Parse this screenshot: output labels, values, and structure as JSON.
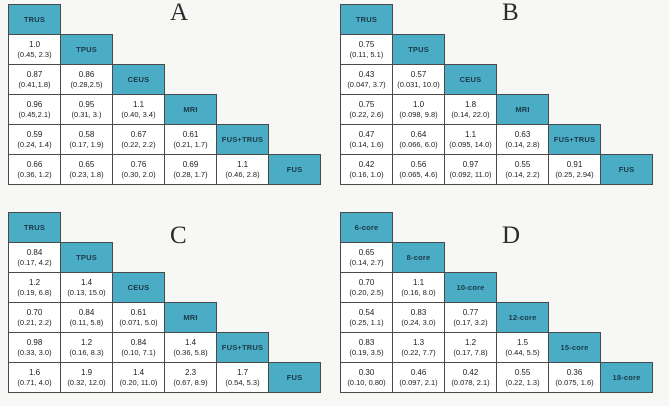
{
  "figure": {
    "description_visible": "",
    "accent_colors": {
      "header_fill": "#4bacc6",
      "header_text": "#1c3947",
      "cell_fill": "#ffffff",
      "border": "#4a4a4a"
    }
  },
  "chart_data": [
    {
      "type": "table",
      "title": "A",
      "layout": "lower-triangular league table, diagonal = treatment headers",
      "treatments": [
        "TRUS",
        "TPUS",
        "CEUS",
        "MRI",
        "FUS+TRUS",
        "FUS"
      ],
      "rows": [
        [
          {
            "est": "1.0",
            "ci": "(0.45, 2.3)"
          }
        ],
        [
          {
            "est": "0.87",
            "ci": "(0.41,1.8)"
          },
          {
            "est": "0.86",
            "ci": "(0.28,2.5)"
          }
        ],
        [
          {
            "est": "0.96",
            "ci": "(0.45,2.1)"
          },
          {
            "est": "0.95",
            "ci": "(0.31, 3.)"
          },
          {
            "est": "1.1",
            "ci": "(0.40, 3.4)"
          }
        ],
        [
          {
            "est": "0.59",
            "ci": "(0.24, 1.4)"
          },
          {
            "est": "0.58",
            "ci": "(0.17, 1.9)"
          },
          {
            "est": "0.67",
            "ci": "(0.22, 2.2)"
          },
          {
            "est": "0.61",
            "ci": "(0.21, 1.7)"
          }
        ],
        [
          {
            "est": "0.66",
            "ci": "(0.36, 1.2)"
          },
          {
            "est": "0.65",
            "ci": "(0.23, 1.8)"
          },
          {
            "est": "0.76",
            "ci": "(0.30, 2.0)"
          },
          {
            "est": "0.69",
            "ci": "(0.28, 1.7)"
          },
          {
            "est": "1.1",
            "ci": "(0.46, 2.8)"
          }
        ]
      ]
    },
    {
      "type": "table",
      "title": "B",
      "layout": "lower-triangular league table, diagonal = treatment headers",
      "treatments": [
        "TRUS",
        "TPUS",
        "CEUS",
        "MRI",
        "FUS+TRUS",
        "FUS"
      ],
      "rows": [
        [
          {
            "est": "0.75",
            "ci": "(0.11, 5.1)"
          }
        ],
        [
          {
            "est": "0.43",
            "ci": "(0.047, 3.7)"
          },
          {
            "est": "0.57",
            "ci": "(0.031, 10.0)"
          }
        ],
        [
          {
            "est": "0.75",
            "ci": "(0.22, 2.6)"
          },
          {
            "est": "1.0",
            "ci": "(0.098, 9.8)"
          },
          {
            "est": "1.8",
            "ci": "(0.14, 22.0)"
          }
        ],
        [
          {
            "est": "0.47",
            "ci": "(0.14, 1.6)"
          },
          {
            "est": "0.64",
            "ci": "(0.066, 6.0)"
          },
          {
            "est": "1.1",
            "ci": "(0.095, 14.0)"
          },
          {
            "est": "0.63",
            "ci": "(0.14, 2.8)"
          }
        ],
        [
          {
            "est": "0.42",
            "ci": "(0.16, 1.0)"
          },
          {
            "est": "0.56",
            "ci": "(0.065, 4.6)"
          },
          {
            "est": "0.97",
            "ci": "(0.092, 11.0)"
          },
          {
            "est": "0.55",
            "ci": "(0.14, 2.2)"
          },
          {
            "est": "0.91",
            "ci": "(0.25, 2.94)"
          }
        ]
      ]
    },
    {
      "type": "table",
      "title": "C",
      "layout": "lower-triangular league table, diagonal = treatment headers",
      "treatments": [
        "TRUS",
        "TPUS",
        "CEUS",
        "MRI",
        "FUS+TRUS",
        "FUS"
      ],
      "rows": [
        [
          {
            "est": "0.84",
            "ci": "(0.17, 4.2)"
          }
        ],
        [
          {
            "est": "1.2",
            "ci": "(0.19, 6.8)"
          },
          {
            "est": "1.4",
            "ci": "(0.13, 15.0)"
          }
        ],
        [
          {
            "est": "0.70",
            "ci": "(0.21, 2.2)"
          },
          {
            "est": "0.84",
            "ci": "(0.11, 5.8)"
          },
          {
            "est": "0.61",
            "ci": "(0.071, 5.0)"
          }
        ],
        [
          {
            "est": "0.98",
            "ci": "(0.33, 3.0)"
          },
          {
            "est": "1.2",
            "ci": "(0.16, 8.3)"
          },
          {
            "est": "0.84",
            "ci": "(0.10, 7.1)"
          },
          {
            "est": "1.4",
            "ci": "(0.36, 5.8)"
          }
        ],
        [
          {
            "est": "1.6",
            "ci": "(0.71, 4.0)"
          },
          {
            "est": "1.9",
            "ci": "(0.32, 12.0)"
          },
          {
            "est": "1.4",
            "ci": "(0.20, 11.0)"
          },
          {
            "est": "2.3",
            "ci": "(0.67, 8.9)"
          },
          {
            "est": "1.7",
            "ci": "(0.54, 5.3)"
          }
        ]
      ]
    },
    {
      "type": "table",
      "title": "D",
      "layout": "lower-triangular league table, diagonal = treatment headers",
      "treatments": [
        "6-core",
        "8-core",
        "10-core",
        "12-core",
        "15-core",
        "18-core"
      ],
      "rows": [
        [
          {
            "est": "0.65",
            "ci": "(0.14, 2.7)"
          }
        ],
        [
          {
            "est": "0.70",
            "ci": "(0.20, 2.5)"
          },
          {
            "est": "1.1",
            "ci": "(0.16, 8.0)"
          }
        ],
        [
          {
            "est": "0.54",
            "ci": "(0.25, 1.1)"
          },
          {
            "est": "0.83",
            "ci": "(0.24, 3.0)"
          },
          {
            "est": "0.77",
            "ci": "(0.17, 3.2)"
          }
        ],
        [
          {
            "est": "0.83",
            "ci": "(0.19, 3.5)"
          },
          {
            "est": "1.3",
            "ci": "(0.22, 7.7)"
          },
          {
            "est": "1.2",
            "ci": "(0.17, 7.8)"
          },
          {
            "est": "1.5",
            "ci": "(0.44, 5.5)"
          }
        ],
        [
          {
            "est": "0.30",
            "ci": "(0.10, 0.80)"
          },
          {
            "est": "0.46",
            "ci": "(0.097, 2.1)"
          },
          {
            "est": "0.42",
            "ci": "(0.078, 2.1)"
          },
          {
            "est": "0.55",
            "ci": "(0.22, 1.3)"
          },
          {
            "est": "0.36",
            "ci": "(0.075, 1.6)"
          }
        ]
      ]
    }
  ]
}
